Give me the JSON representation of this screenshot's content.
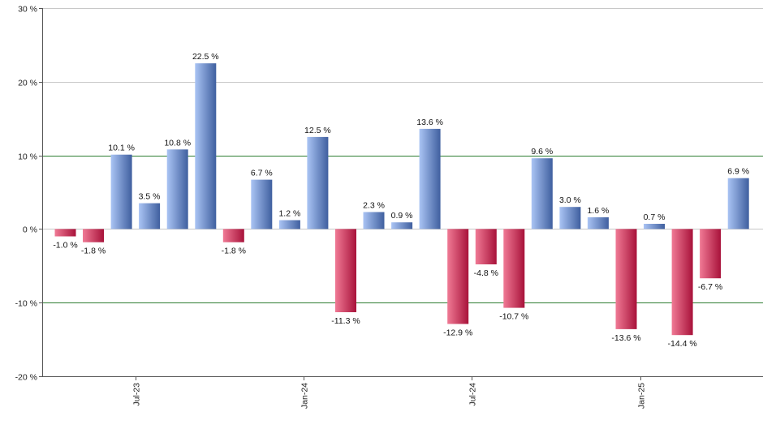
{
  "chart_data": {
    "type": "bar",
    "title": "",
    "xlabel": "",
    "ylabel": "",
    "ylim": [
      -20,
      30
    ],
    "y_ticks": [
      -20,
      -10,
      0,
      10,
      20,
      30
    ],
    "y_tick_labels": [
      "-20 %",
      "-10 %",
      "0 %",
      "10 %",
      "20 %",
      "30 %"
    ],
    "values": [
      -1.0,
      -1.8,
      10.1,
      3.5,
      10.8,
      22.5,
      -1.8,
      6.7,
      1.2,
      12.5,
      -11.3,
      2.3,
      0.9,
      13.6,
      -12.9,
      -4.8,
      -10.7,
      9.6,
      3.0,
      1.6,
      -13.6,
      0.7,
      -14.4,
      -6.7,
      6.9
    ],
    "data_labels": [
      "-1.0 %",
      "-1.8 %",
      "10.1 %",
      "3.5 %",
      "10.8 %",
      "22.5 %",
      "-1.8 %",
      "6.7 %",
      "1.2 %",
      "12.5 %",
      "-11.3 %",
      "2.3 %",
      "0.9 %",
      "13.6 %",
      "-12.9 %",
      "-4.8 %",
      "-10.7 %",
      "9.6 %",
      "3.0 %",
      "1.6 %",
      "-13.6 %",
      "0.7 %",
      "-14.4 %",
      "-6.7 %",
      "6.9 %"
    ],
    "x_tick_labels": [
      "Jul-23",
      "Jan-24",
      "Jul-24",
      "Jan-25"
    ],
    "x_tick_between_bars": [
      3,
      9,
      15,
      21
    ],
    "reference_lines": [
      10,
      -10
    ],
    "grid": true,
    "legend": "none",
    "colors": {
      "positive_light": "#aac4f4",
      "positive_dark": "#3f5f9f",
      "negative_light": "#f07a95",
      "negative_dark": "#a8123a",
      "grid": "#c8c8c8",
      "reference_line": "#2e7d32",
      "axis": "#555555"
    }
  }
}
